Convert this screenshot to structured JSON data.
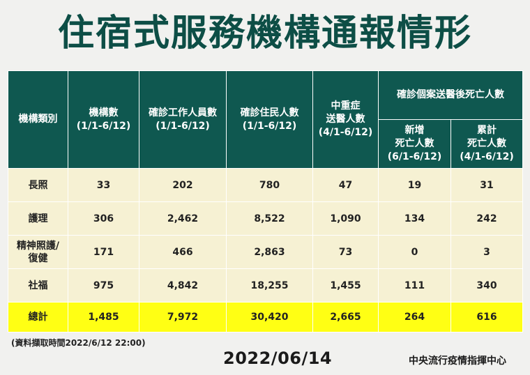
{
  "title": "住宿式服務機構通報情形",
  "table": {
    "headers": {
      "category": "機構類別",
      "institutions": [
        "機構數",
        "(1/1-6/12)"
      ],
      "staff": [
        "確診工作人員數",
        "(1/1-6/12)"
      ],
      "residents": [
        "確診住民人數",
        "(1/1-6/12)"
      ],
      "severe": [
        "中重症",
        "送醫人數",
        "(4/1-6/12)"
      ],
      "deaths_group": "確診個案送醫後死亡人數",
      "new_deaths": [
        "新增",
        "死亡人數",
        "(6/1-6/12)"
      ],
      "cum_deaths": [
        "累計",
        "死亡人數",
        "(4/1-6/12)"
      ]
    },
    "rows": [
      {
        "label": [
          "長照"
        ],
        "values": [
          "33",
          "202",
          "780",
          "47",
          "19",
          "31"
        ]
      },
      {
        "label": [
          "護理"
        ],
        "values": [
          "306",
          "2,462",
          "8,522",
          "1,090",
          "134",
          "242"
        ]
      },
      {
        "label": [
          "精神照護/",
          "復健"
        ],
        "values": [
          "171",
          "466",
          "2,863",
          "73",
          "0",
          "3"
        ]
      },
      {
        "label": [
          "社福"
        ],
        "values": [
          "975",
          "4,842",
          "18,255",
          "1,455",
          "111",
          "340"
        ]
      }
    ],
    "total": {
      "label": "總計",
      "values": [
        "1,485",
        "7,972",
        "30,420",
        "2,665",
        "264",
        "616"
      ]
    }
  },
  "source_note": "(資料擷取時間2022/6/12 22:00)",
  "date": "2022/06/14",
  "organization": "中央流行疫情指揮中心",
  "colors": {
    "header_bg": "#0f5850",
    "row_bg": "#f6f1d3",
    "total_bg": "#ffff14",
    "title": "#0d4e46"
  }
}
